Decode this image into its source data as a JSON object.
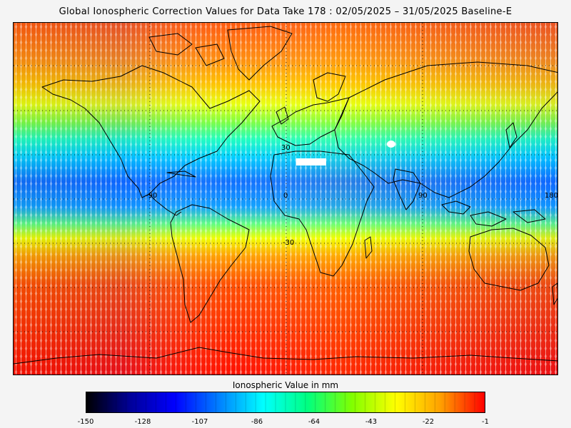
{
  "title": "Global Ionospheric Correction Values for Data Take 178 : 02/05/2025 – 31/05/2025 Baseline-E",
  "map": {
    "grid_labels": {
      "lat_30": "30",
      "lat_0": "0",
      "lat_m30": "-30",
      "lon_m90": "-90",
      "lon_90": "90",
      "lon_180": "180"
    },
    "colors": {
      "frame": "#000000",
      "coastline": "#000000",
      "graticule": "#000000",
      "track_hatching": "#ffffff"
    }
  },
  "colorbar": {
    "title": "Ionospheric Value in mm",
    "tick_labels": [
      "-150",
      "-128",
      "-107",
      "-86",
      "-64",
      "-43",
      "-22",
      "-1"
    ],
    "range": [
      -150,
      -1
    ],
    "palette": [
      "#000000",
      "#00009a",
      "#0000ff",
      "#0080ff",
      "#00ffff",
      "#00ff80",
      "#80ff00",
      "#ffff00",
      "#ffa000",
      "#ff0000"
    ]
  }
}
